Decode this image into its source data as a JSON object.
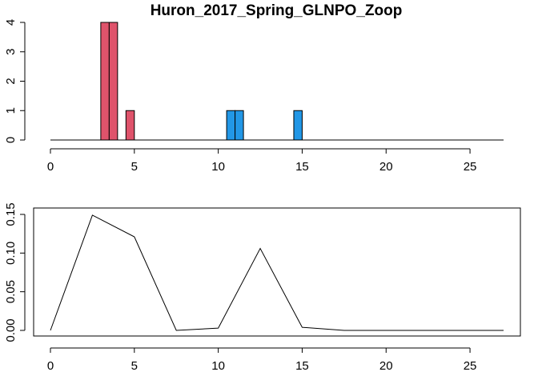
{
  "chart_data": [
    {
      "type": "bar",
      "title": "Huron_2017_Spring_GLNPO_Zoop",
      "xlabel": "",
      "ylabel": "",
      "xlim": [
        0,
        27
      ],
      "ylim": [
        0,
        4
      ],
      "x_ticks": [
        "0",
        "5",
        "10",
        "15",
        "20",
        "25"
      ],
      "y_ticks": [
        "0",
        "1",
        "2",
        "3",
        "4"
      ],
      "frame": false,
      "baseline": [
        0,
        27
      ],
      "bars": [
        {
          "x0": 3.0,
          "x1": 3.5,
          "value": 4,
          "color": "#DF536B"
        },
        {
          "x0": 3.5,
          "x1": 4.0,
          "value": 4,
          "color": "#DF536B"
        },
        {
          "x0": 4.5,
          "x1": 5.0,
          "value": 1,
          "color": "#DF536B"
        },
        {
          "x0": 10.5,
          "x1": 11.0,
          "value": 1,
          "color": "#2297E6"
        },
        {
          "x0": 11.0,
          "x1": 11.5,
          "value": 1,
          "color": "#2297E6"
        },
        {
          "x0": 14.5,
          "x1": 15.0,
          "value": 1,
          "color": "#2297E6"
        }
      ]
    },
    {
      "type": "line",
      "title": "",
      "xlabel": "",
      "ylabel": "",
      "xlim": [
        0,
        27
      ],
      "ylim": [
        0,
        0.15
      ],
      "x_ticks": [
        "0",
        "5",
        "10",
        "15",
        "20",
        "25"
      ],
      "y_ticks": [
        "0.00",
        "0.05",
        "0.10",
        "0.15"
      ],
      "frame": true,
      "series": [
        {
          "x": [
            0,
            2.5,
            5,
            7.5,
            10,
            12.5,
            15,
            17.5,
            20,
            22.5,
            25,
            27
          ],
          "values": [
            0,
            0.149,
            0.121,
            0.0,
            0.003,
            0.106,
            0.004,
            0.0,
            0.0,
            0.0,
            0.0,
            0.0
          ],
          "color": "#000000"
        }
      ]
    }
  ]
}
